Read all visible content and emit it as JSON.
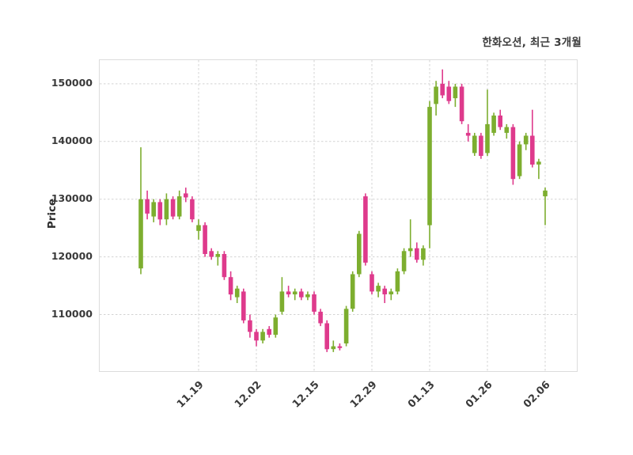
{
  "title": "한화오션, 최근 3개월",
  "ylabel": "Price",
  "chart_data": {
    "type": "candlestick",
    "title": "한화오션, 최근 3개월",
    "ylabel": "Price",
    "xlabel": "",
    "grid": "dashed",
    "legend": "none",
    "up_color": "#7DAE2F",
    "down_color": "#DE3A8C",
    "y_ticks": [
      110000,
      120000,
      130000,
      140000,
      150000
    ],
    "ylim": [
      100200,
      154100
    ],
    "x_tick_labels": [
      "11.19",
      "12.02",
      "12.15",
      "12.29",
      "01.13",
      "01.26",
      "02.06"
    ],
    "x_tick_indices": [
      9,
      18,
      27,
      36,
      45,
      54,
      63
    ],
    "ohlc_columns": [
      "open",
      "high",
      "low",
      "close"
    ],
    "candles": [
      [
        118000,
        139000,
        117000,
        130000
      ],
      [
        130000,
        131500,
        126500,
        127500
      ],
      [
        127000,
        130000,
        126000,
        129500
      ],
      [
        129500,
        130000,
        125500,
        126500
      ],
      [
        126500,
        131000,
        125500,
        130000
      ],
      [
        130000,
        130500,
        126500,
        127000
      ],
      [
        127000,
        131500,
        126500,
        130500
      ],
      [
        131000,
        132000,
        129500,
        130300
      ],
      [
        130000,
        130500,
        126000,
        126500
      ],
      [
        124500,
        126500,
        123000,
        125500
      ],
      [
        125500,
        126000,
        120000,
        120500
      ],
      [
        121000,
        121500,
        119500,
        120000
      ],
      [
        120000,
        121000,
        118500,
        120500
      ],
      [
        120500,
        121000,
        116000,
        116500
      ],
      [
        116500,
        117500,
        112500,
        113500
      ],
      [
        113000,
        115000,
        112000,
        114500
      ],
      [
        114000,
        114500,
        108500,
        109000
      ],
      [
        109000,
        110000,
        106000,
        107000
      ],
      [
        107000,
        107500,
        104500,
        105500
      ],
      [
        105500,
        107500,
        105000,
        107000
      ],
      [
        107500,
        108000,
        106000,
        106500
      ],
      [
        106500,
        110000,
        106000,
        109500
      ],
      [
        110500,
        116500,
        110000,
        114000
      ],
      [
        114000,
        115000,
        113000,
        113500
      ],
      [
        113500,
        114500,
        112500,
        114000
      ],
      [
        114000,
        114500,
        112500,
        113000
      ],
      [
        113000,
        114000,
        112500,
        113500
      ],
      [
        113500,
        114000,
        110000,
        110500
      ],
      [
        110500,
        111000,
        108000,
        108500
      ],
      [
        108500,
        109000,
        103500,
        104000
      ],
      [
        104000,
        105500,
        103500,
        104500
      ],
      [
        104500,
        105000,
        103800,
        104200
      ],
      [
        105000,
        111500,
        104500,
        111000
      ],
      [
        111000,
        117500,
        110500,
        117000
      ],
      [
        117000,
        124500,
        116500,
        124000
      ],
      [
        130500,
        131000,
        118500,
        119000
      ],
      [
        117000,
        117500,
        113500,
        114000
      ],
      [
        114000,
        115500,
        113000,
        115000
      ],
      [
        114500,
        115000,
        112000,
        113500
      ],
      [
        113500,
        114500,
        112500,
        114000
      ],
      [
        114000,
        118000,
        113500,
        117500
      ],
      [
        117500,
        121500,
        117000,
        121000
      ],
      [
        121000,
        126500,
        120000,
        121500
      ],
      [
        121500,
        122500,
        119000,
        119500
      ],
      [
        119500,
        122000,
        118500,
        121500
      ],
      [
        125500,
        147000,
        121500,
        146000
      ],
      [
        146500,
        150500,
        144500,
        149500
      ],
      [
        150000,
        152500,
        147500,
        148000
      ],
      [
        149500,
        150500,
        146500,
        147000
      ],
      [
        147500,
        150000,
        146000,
        149500
      ],
      [
        149500,
        150000,
        143000,
        143500
      ],
      [
        141500,
        143000,
        140000,
        141000
      ],
      [
        138000,
        141500,
        137500,
        141000
      ],
      [
        141000,
        141500,
        137000,
        137500
      ],
      [
        138000,
        149000,
        137500,
        143000
      ],
      [
        141500,
        145000,
        141000,
        144500
      ],
      [
        144500,
        145500,
        142000,
        142500
      ],
      [
        141500,
        143000,
        140500,
        142500
      ],
      [
        142500,
        143000,
        132500,
        133500
      ],
      [
        134000,
        140000,
        133500,
        139500
      ],
      [
        139500,
        141500,
        138500,
        141000
      ],
      [
        141000,
        145500,
        135500,
        136000
      ],
      [
        136000,
        137000,
        133500,
        136500
      ],
      [
        130500,
        132000,
        125500,
        131500
      ]
    ]
  }
}
